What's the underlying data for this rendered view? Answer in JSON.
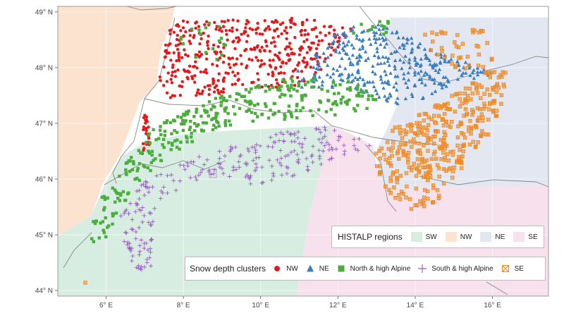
{
  "map": {
    "lon_range": [
      4.75,
      17.45
    ],
    "lat_range": [
      43.9,
      49.1
    ],
    "x_ticks": [
      {
        "value": 6,
        "label": "6° E"
      },
      {
        "value": 8,
        "label": "8° E"
      },
      {
        "value": 10,
        "label": "10° E"
      },
      {
        "value": 12,
        "label": "12° E"
      },
      {
        "value": 14,
        "label": "14° E"
      },
      {
        "value": 16,
        "label": "16° E"
      }
    ],
    "y_ticks": [
      {
        "value": 44,
        "label": "44° N"
      },
      {
        "value": 45,
        "label": "45° N"
      },
      {
        "value": 46,
        "label": "46° N"
      },
      {
        "value": 47,
        "label": "47° N"
      },
      {
        "value": 48,
        "label": "48° N"
      },
      {
        "value": 49,
        "label": "49° N"
      }
    ]
  },
  "regions_legend": {
    "title": "HISTALP regions",
    "items": [
      {
        "key": "SW",
        "label": "SW",
        "color": "#d8ede2"
      },
      {
        "key": "NW",
        "label": "NW",
        "color": "#fbe3d0"
      },
      {
        "key": "NE",
        "label": "NE",
        "color": "#e2e7f1"
      },
      {
        "key": "SE",
        "label": "SE",
        "color": "#f6e1ec"
      }
    ]
  },
  "clusters_legend": {
    "title": "Snow depth clusters",
    "items": [
      {
        "key": "nw",
        "label": "NW",
        "shape": "circle",
        "color": "#e31a1c"
      },
      {
        "key": "ne",
        "label": "NE",
        "shape": "triangle",
        "color": "#3a7ebf"
      },
      {
        "key": "north",
        "label": "North & high Alpine",
        "shape": "square",
        "color": "#4aad3c"
      },
      {
        "key": "south",
        "label": "South & high Alpine",
        "shape": "plus",
        "color": "#9a5cc0"
      },
      {
        "key": "se",
        "label": "SE",
        "shape": "boxx",
        "color": "#f08a24"
      }
    ]
  }
}
